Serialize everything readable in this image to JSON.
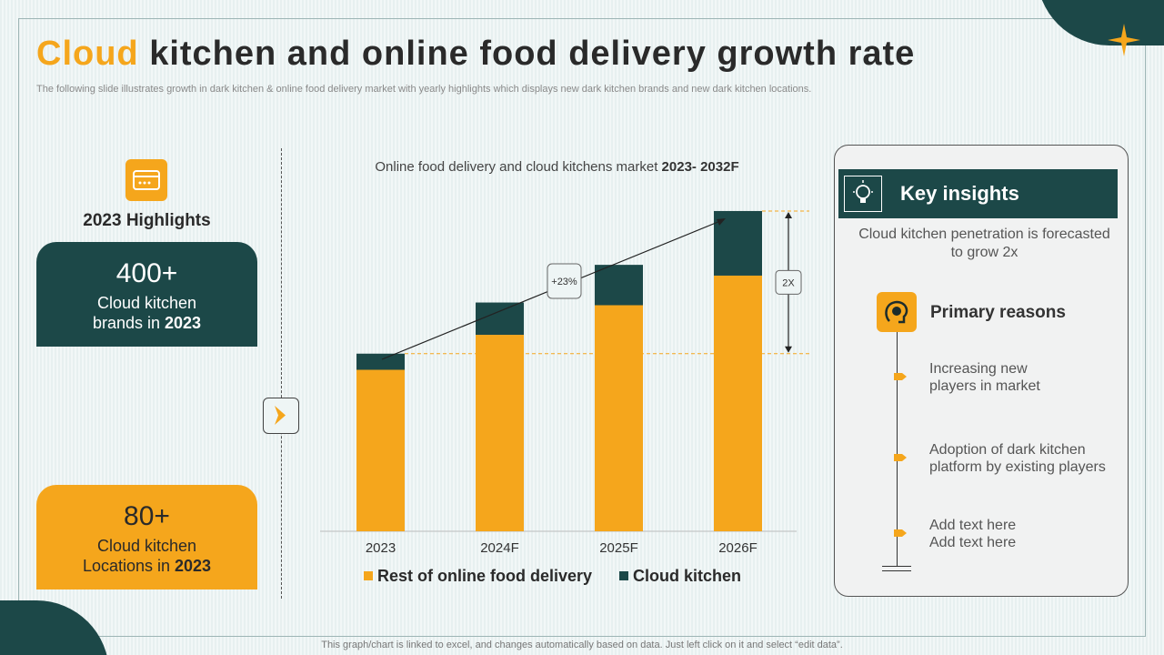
{
  "title": {
    "accent": "Cloud",
    "rest": " kitchen and online food delivery growth rate"
  },
  "subtitle": "The following slide illustrates growth in dark kitchen & online food delivery market with yearly highlights which displays new dark kitchen brands and new dark kitchen locations.",
  "highlights": {
    "heading": "2023 Highlights",
    "card1": {
      "big": "400+",
      "line1": "Cloud kitchen",
      "line2_pre": "brands in ",
      "line2_bold": "2023"
    },
    "card2": {
      "big": "80+",
      "line1": "Cloud kitchen",
      "line2_pre": "Locations in ",
      "line2_bold": "2023"
    }
  },
  "chart_title": {
    "pre": "Online food delivery and cloud kitchens market ",
    "bold": "2023- 2032F"
  },
  "chart_data": {
    "type": "bar",
    "stacked": true,
    "categories": [
      "2023",
      "2024F",
      "2025F",
      "2026F"
    ],
    "series": [
      {
        "name": "Rest of online food delivery",
        "color": "#f5a61c",
        "values": [
          30,
          36.5,
          42,
          47.5
        ]
      },
      {
        "name": "Cloud kitchen",
        "color": "#1c4848",
        "values": [
          3,
          6,
          7.5,
          12
        ]
      }
    ],
    "ylim": [
      0,
      60
    ],
    "annotations": {
      "growth_label": "+23%",
      "multiplier_label": "2X",
      "reference_value": 33
    }
  },
  "key_insights": {
    "title": "Key insights",
    "text": "Cloud kitchen penetration is forecasted to grow 2x",
    "primary_reasons": "Primary reasons",
    "reasons": [
      {
        "l1": "Increasing new",
        "l2": "players in market"
      },
      {
        "l1": "Adoption of dark kitchen",
        "l2": "platform by existing players"
      },
      {
        "l1": "Add text here",
        "l2": "Add text here"
      }
    ]
  },
  "footer": "This graph/chart is linked to excel, and changes automatically based on data. Just left click on it and select “edit data”.",
  "colors": {
    "accent": "#f5a61c",
    "dark": "#1c4848"
  }
}
